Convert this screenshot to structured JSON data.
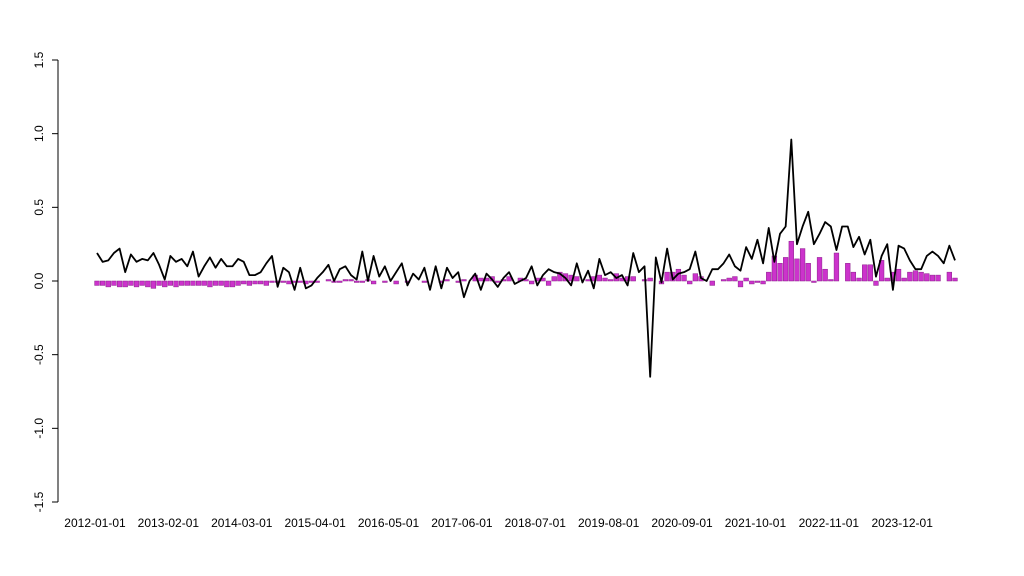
{
  "chart_data": {
    "type": "bar",
    "categories": [
      "2012-01-01",
      null,
      null,
      null,
      null,
      null,
      null,
      null,
      null,
      null,
      null,
      null,
      null,
      "2013-02-01",
      null,
      null,
      null,
      null,
      null,
      null,
      null,
      null,
      null,
      null,
      null,
      null,
      "2014-03-01",
      null,
      null,
      null,
      null,
      null,
      null,
      null,
      null,
      null,
      null,
      null,
      null,
      "2015-04-01",
      null,
      null,
      null,
      null,
      null,
      null,
      null,
      null,
      null,
      null,
      null,
      null,
      "2016-05-01",
      null,
      null,
      null,
      null,
      null,
      null,
      null,
      null,
      null,
      null,
      null,
      null,
      "2017-06-01",
      null,
      null,
      null,
      null,
      null,
      null,
      null,
      null,
      null,
      null,
      null,
      null,
      "2018-07-01",
      null,
      null,
      null,
      null,
      null,
      null,
      null,
      null,
      null,
      null,
      null,
      null,
      "2019-08-01",
      null,
      null,
      null,
      null,
      null,
      null,
      null,
      null,
      null,
      null,
      null,
      null,
      "2020-09-01",
      null,
      null,
      null,
      null,
      null,
      null,
      null,
      null,
      null,
      null,
      null,
      null,
      "2021-10-01",
      null,
      null,
      null,
      null,
      null,
      null,
      null,
      null,
      null,
      null,
      null,
      null,
      "2022-11-01",
      null,
      null,
      null,
      null,
      null,
      null,
      null,
      null,
      null,
      null,
      null,
      null,
      "2023-12-01",
      null,
      null,
      null,
      null,
      null,
      null,
      null,
      null,
      null
    ],
    "series": [
      {
        "type": "bar",
        "color": "#cc33cc",
        "values": [
          -0.03,
          -0.03,
          -0.04,
          -0.03,
          -0.04,
          -0.04,
          -0.03,
          -0.04,
          -0.03,
          -0.04,
          -0.05,
          -0.03,
          -0.04,
          -0.03,
          -0.04,
          -0.03,
          -0.03,
          -0.03,
          -0.03,
          -0.03,
          -0.04,
          -0.03,
          -0.03,
          -0.04,
          -0.04,
          -0.03,
          -0.02,
          -0.03,
          -0.02,
          -0.02,
          -0.03,
          -0.01,
          -0.01,
          -0.01,
          -0.02,
          -0.01,
          -0.01,
          -0.02,
          -0.01,
          -0.01,
          0.0,
          0.01,
          -0.01,
          -0.01,
          0.01,
          0.01,
          -0.01,
          -0.01,
          0.01,
          -0.02,
          0.0,
          -0.01,
          0.0,
          -0.02,
          0.0,
          -0.01,
          0.0,
          0.0,
          -0.01,
          0.0,
          0.0,
          -0.01,
          0.01,
          0.0,
          -0.01,
          0.01,
          0.0,
          0.04,
          0.02,
          0.02,
          0.03,
          -0.01,
          0.01,
          0.03,
          0.0,
          0.02,
          0.01,
          -0.02,
          0.02,
          0.02,
          -0.03,
          0.03,
          0.06,
          0.05,
          0.04,
          0.03,
          0.0,
          0.01,
          0.03,
          0.04,
          0.02,
          0.01,
          0.05,
          0.02,
          0.03,
          0.03,
          0.0,
          0.01,
          0.02,
          0.0,
          -0.02,
          0.06,
          0.06,
          0.08,
          0.04,
          -0.02,
          0.05,
          0.03,
          0.0,
          -0.03,
          0.0,
          0.01,
          0.02,
          0.03,
          -0.04,
          0.02,
          -0.02,
          -0.01,
          -0.02,
          0.06,
          0.17,
          0.12,
          0.16,
          0.27,
          0.15,
          0.22,
          0.12,
          -0.01,
          0.16,
          0.08,
          0.01,
          0.19,
          0.0,
          0.12,
          0.06,
          0.02,
          0.11,
          0.11,
          -0.03,
          0.14,
          0.02,
          0.06,
          0.08,
          0.02,
          0.06,
          0.07,
          0.06,
          0.05,
          0.04,
          0.04,
          0.0,
          0.06,
          0.02
        ]
      },
      {
        "type": "line",
        "color": "#000000",
        "values": [
          0.19,
          0.13,
          0.14,
          0.19,
          0.22,
          0.06,
          0.18,
          0.13,
          0.15,
          0.14,
          0.19,
          0.11,
          0.01,
          0.17,
          0.13,
          0.15,
          0.1,
          0.2,
          0.03,
          0.1,
          0.16,
          0.09,
          0.15,
          0.1,
          0.1,
          0.15,
          0.13,
          0.04,
          0.04,
          0.06,
          0.12,
          0.17,
          -0.04,
          0.09,
          0.06,
          -0.06,
          0.09,
          -0.05,
          -0.03,
          0.02,
          0.06,
          0.11,
          0.0,
          0.08,
          0.1,
          0.04,
          0.01,
          0.2,
          0.0,
          0.17,
          0.03,
          0.1,
          0.0,
          0.06,
          0.12,
          -0.03,
          0.05,
          0.01,
          0.09,
          -0.06,
          0.1,
          -0.05,
          0.09,
          0.02,
          0.06,
          -0.11,
          0.0,
          0.05,
          -0.06,
          0.05,
          0.01,
          -0.04,
          0.02,
          0.06,
          -0.02,
          0.0,
          0.02,
          0.1,
          -0.03,
          0.04,
          0.08,
          0.06,
          0.05,
          0.02,
          -0.03,
          0.12,
          -0.01,
          0.07,
          -0.05,
          0.15,
          0.04,
          0.06,
          0.02,
          0.04,
          -0.03,
          0.19,
          0.06,
          0.1,
          -0.65,
          0.16,
          -0.01,
          0.22,
          0.01,
          0.05,
          0.06,
          0.08,
          0.2,
          0.02,
          0.0,
          0.08,
          0.08,
          0.12,
          0.18,
          0.1,
          0.07,
          0.23,
          0.15,
          0.28,
          0.12,
          0.36,
          0.13,
          0.32,
          0.37,
          0.96,
          0.25,
          0.37,
          0.47,
          0.25,
          0.32,
          0.4,
          0.37,
          0.21,
          0.37,
          0.37,
          0.23,
          0.3,
          0.18,
          0.28,
          0.03,
          0.17,
          0.25,
          -0.06,
          0.24,
          0.22,
          0.14,
          0.08,
          0.08,
          0.17,
          0.2,
          0.17,
          0.12,
          0.24,
          0.14
        ]
      }
    ],
    "ylim": [
      -1.5,
      1.5
    ],
    "yticks": [
      -1.5,
      {
        "value": -1,
        "label": "-1.0"
      },
      -0.5,
      {
        "value": 0,
        "label": "0.0"
      },
      0.5,
      {
        "value": 1,
        "label": "1.0"
      },
      1.5
    ]
  }
}
